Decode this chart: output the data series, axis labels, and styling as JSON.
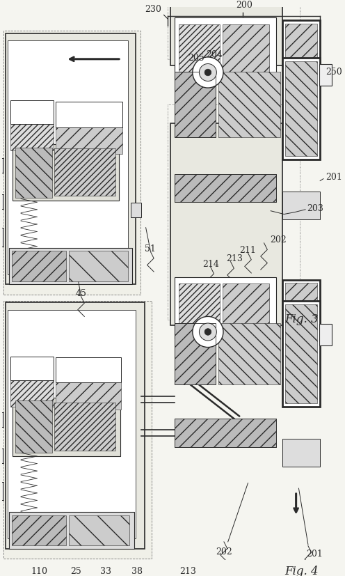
{
  "bg_color": "#f5f5f0",
  "line_color": "#2a2a2a",
  "fig3_label": "Fig. 3",
  "fig4_label": "Fig. 4",
  "font_size_label": 9,
  "font_size_fig": 12
}
